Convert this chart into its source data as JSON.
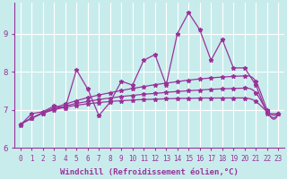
{
  "xlabel": "Windchill (Refroidissement éolien,°C)",
  "xlim": [
    -0.5,
    23.5
  ],
  "ylim": [
    6.0,
    9.8
  ],
  "yticks": [
    6,
    7,
    8,
    9
  ],
  "xticks": [
    0,
    1,
    2,
    3,
    4,
    5,
    6,
    7,
    8,
    9,
    10,
    11,
    12,
    13,
    14,
    15,
    16,
    17,
    18,
    19,
    20,
    21,
    22,
    23
  ],
  "bg_color": "#c8ecec",
  "grid_color": "#ffffff",
  "line_color": "#993399",
  "jagged_x": [
    0,
    1,
    2,
    3,
    4,
    5,
    6,
    7,
    8,
    9,
    10,
    11,
    12,
    13,
    14,
    15,
    16,
    17,
    18,
    19,
    20,
    21,
    22,
    23
  ],
  "jagged_y": [
    6.6,
    6.9,
    6.95,
    7.1,
    7.05,
    8.05,
    7.55,
    6.85,
    7.2,
    7.75,
    7.65,
    8.3,
    8.45,
    7.65,
    9.0,
    9.55,
    9.1,
    8.3,
    8.85,
    8.1,
    8.1,
    7.65,
    6.9,
    6.9
  ],
  "smooth1_x": [
    0,
    1,
    2,
    3,
    4,
    5,
    6,
    7,
    8,
    9,
    10,
    11,
    12,
    13,
    14,
    15,
    16,
    17,
    18,
    19,
    20,
    21,
    22,
    23
  ],
  "smooth1_y": [
    6.62,
    6.78,
    6.93,
    7.05,
    7.15,
    7.24,
    7.32,
    7.39,
    7.45,
    7.51,
    7.56,
    7.61,
    7.66,
    7.7,
    7.74,
    7.78,
    7.81,
    7.84,
    7.86,
    7.88,
    7.89,
    7.74,
    7.0,
    6.9
  ],
  "smooth2_x": [
    0,
    1,
    2,
    3,
    4,
    5,
    6,
    7,
    8,
    9,
    10,
    11,
    12,
    13,
    14,
    15,
    16,
    17,
    18,
    19,
    20,
    21,
    22,
    23
  ],
  "smooth2_y": [
    6.62,
    6.78,
    6.91,
    7.02,
    7.1,
    7.17,
    7.22,
    7.27,
    7.31,
    7.35,
    7.38,
    7.41,
    7.43,
    7.46,
    7.48,
    7.5,
    7.52,
    7.54,
    7.55,
    7.56,
    7.57,
    7.45,
    6.95,
    6.9
  ],
  "smooth3_x": [
    0,
    1,
    2,
    3,
    4,
    5,
    6,
    7,
    8,
    9,
    10,
    11,
    12,
    13,
    14,
    15,
    16,
    17,
    18,
    19,
    20,
    21,
    22,
    23
  ],
  "smooth3_y": [
    6.62,
    6.78,
    6.91,
    7.0,
    7.07,
    7.12,
    7.16,
    7.19,
    7.22,
    7.24,
    7.26,
    7.27,
    7.28,
    7.29,
    7.3,
    7.3,
    7.31,
    7.31,
    7.31,
    7.31,
    7.31,
    7.22,
    6.95,
    6.9
  ],
  "marker": "*",
  "markersize": 3.5,
  "linewidth": 0.9,
  "tick_fontsize": 5.5,
  "xlabel_fontsize": 6.5
}
